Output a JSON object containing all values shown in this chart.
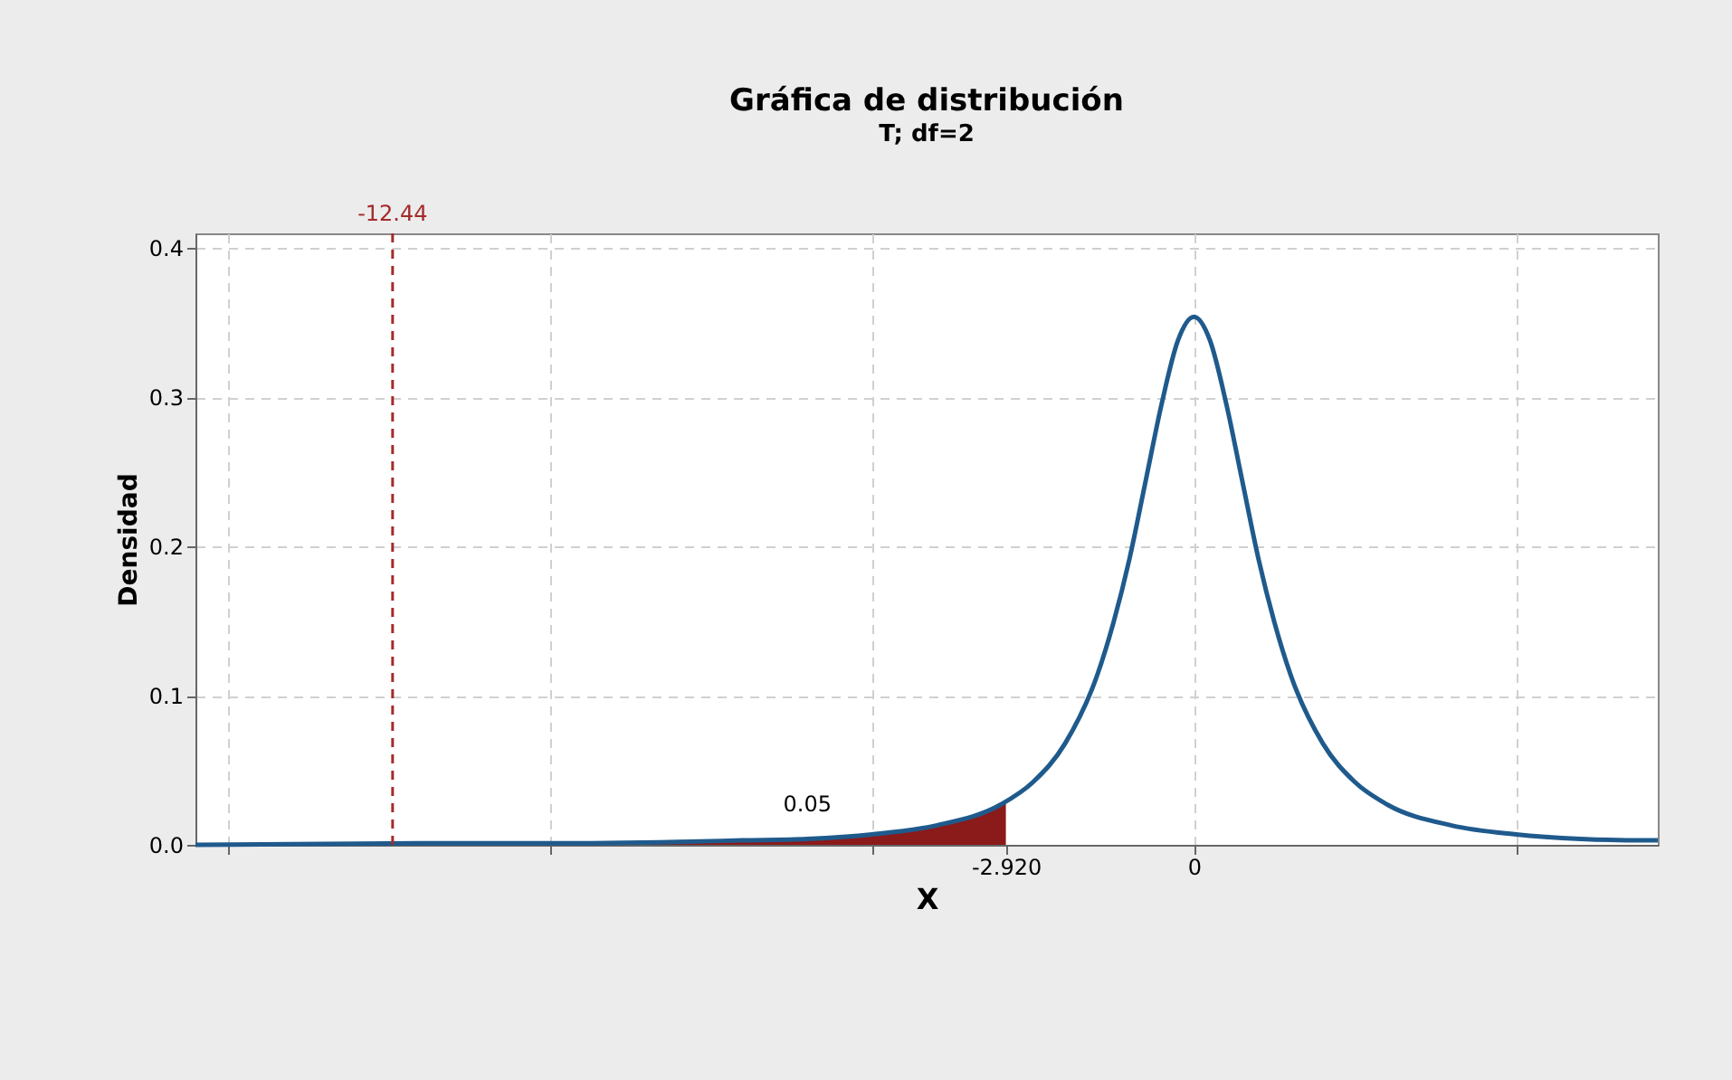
{
  "chart_data": {
    "type": "line",
    "title": "Gráfica de distribución",
    "subtitle": "T; df=2",
    "xlabel": "X",
    "ylabel": "Densidad",
    "xlim": [
      -15.5,
      7.2
    ],
    "ylim": [
      0,
      0.41
    ],
    "xticks": [
      {
        "value": -15,
        "label": null
      },
      {
        "value": -10,
        "label": null
      },
      {
        "value": -5,
        "label": null
      },
      {
        "value": -2.92,
        "label": "-2.920"
      },
      0,
      {
        "value": 5,
        "label": null
      }
    ],
    "yticks": [
      {
        "value": 0,
        "label": "0.0"
      },
      0.1,
      0.2,
      0.3,
      0.4
    ],
    "grid": true,
    "marker": "none",
    "line_style": "solid",
    "series": [
      {
        "type": "area",
        "color": "#8b1a1a",
        "x": [
          -15.5,
          -12,
          -10,
          -8,
          -7,
          -6,
          -5,
          -4,
          -3.5,
          -3,
          -2.92
        ],
        "values": [
          0.0,
          0.001,
          0.001,
          0.002,
          0.003,
          0.004,
          0.007,
          0.013,
          0.019,
          0.027,
          0.029
        ]
      },
      {
        "color": "#1f5a8c",
        "x": [
          -15.5,
          -12,
          -10,
          -8,
          -7,
          -6,
          -5,
          -4,
          -3,
          -2.5,
          -2,
          -1.5,
          -1.25,
          -1,
          -0.75,
          -0.5,
          -0.25,
          0,
          0.25,
          0.5,
          0.75,
          1,
          1.25,
          1.5,
          2,
          2.5,
          3,
          4,
          5,
          6,
          7,
          7.2
        ],
        "values": [
          0.0,
          0.001,
          0.001,
          0.002,
          0.003,
          0.004,
          0.007,
          0.013,
          0.027,
          0.042,
          0.068,
          0.114,
          0.149,
          0.192,
          0.244,
          0.296,
          0.338,
          0.354,
          0.338,
          0.296,
          0.244,
          0.192,
          0.149,
          0.114,
          0.068,
          0.042,
          0.027,
          0.013,
          0.007,
          0.004,
          0.003,
          0.003
        ]
      }
    ],
    "ref_lines": [
      {
        "axis": "x",
        "value": -12.44,
        "label": "-12.44",
        "color": "#a52a2a",
        "line_style": "dashed"
      }
    ],
    "annotations": [
      "0.05"
    ]
  }
}
